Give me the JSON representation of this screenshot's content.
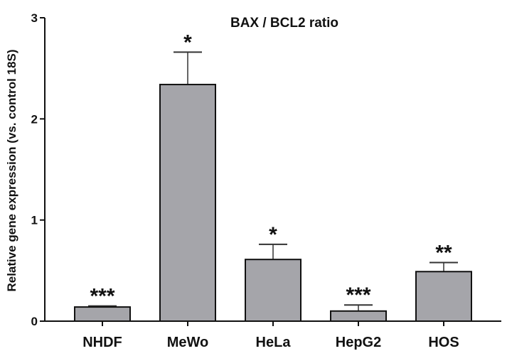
{
  "chart_data": {
    "type": "bar",
    "title": "BAX / BCL2 ratio",
    "xlabel": "",
    "ylabel": "Relative gene expression (vs. control 18S)",
    "ylim": [
      0,
      3
    ],
    "yticks": [
      0,
      1,
      2,
      3
    ],
    "grid": false,
    "legend": null,
    "categories": [
      "NHDF",
      "MeWo",
      "HeLa",
      "HepG2",
      "HOS"
    ],
    "values": [
      0.14,
      2.34,
      0.61,
      0.1,
      0.49
    ],
    "error_upper": [
      0.15,
      2.66,
      0.76,
      0.16,
      0.58
    ],
    "significance": [
      "***",
      "*",
      "*",
      "***",
      "**"
    ],
    "bar_color": "#a5a5aa",
    "edge_color": "#111111"
  }
}
